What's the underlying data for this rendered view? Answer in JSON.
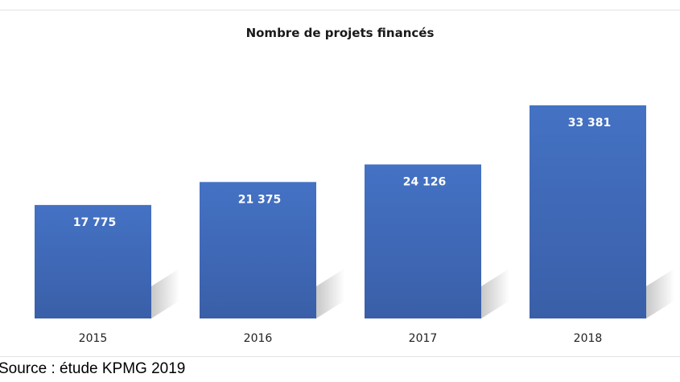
{
  "chart_data": {
    "type": "bar",
    "title": "Nombre de projets financés",
    "categories": [
      "2015",
      "2016",
      "2017",
      "2018"
    ],
    "values": [
      17775,
      21375,
      24126,
      33381
    ],
    "value_labels": [
      "17 775",
      "21 375",
      "24 126",
      "33 381"
    ],
    "xlabel": "",
    "ylabel": "",
    "ylim": [
      0,
      33381
    ],
    "grid": false,
    "legend": "none",
    "bar_color": "#4472C4",
    "bar_color_dark": "#3A5FA8"
  },
  "source": "Source : étude KPMG 2019"
}
